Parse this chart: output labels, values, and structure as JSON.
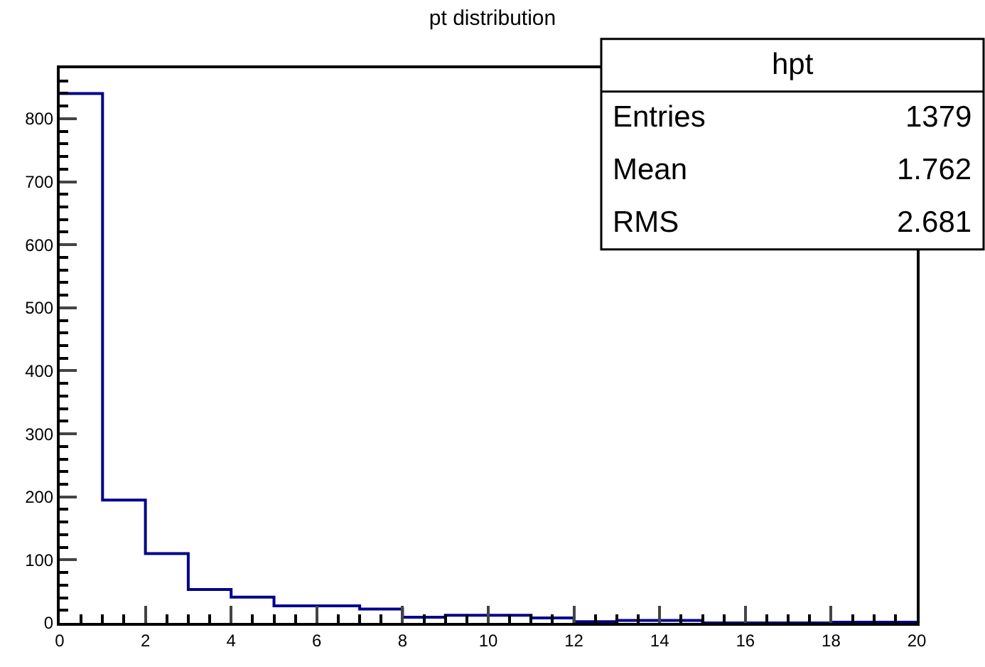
{
  "chart_data": {
    "type": "histogram",
    "title": "pt distribution",
    "bins": [
      0,
      1,
      2,
      3,
      4,
      5,
      6,
      7,
      8,
      9,
      10,
      11,
      12,
      13,
      14,
      15,
      16,
      17,
      18,
      19,
      20
    ],
    "values": [
      840,
      195,
      110,
      53,
      41,
      27,
      27,
      22,
      9,
      12,
      12,
      8,
      2,
      4,
      4,
      0,
      0,
      0,
      1,
      1
    ],
    "color": "#00008b",
    "xlim": [
      0,
      20
    ],
    "xticks": [
      0,
      2,
      4,
      6,
      8,
      10,
      12,
      14,
      16,
      18,
      20
    ],
    "ylim": [
      0,
      880
    ],
    "yticks": [
      0,
      100,
      200,
      300,
      400,
      500,
      600,
      700,
      800
    ],
    "annotations": [
      "hpt",
      "Entries",
      "1379",
      "Mean",
      "1.762",
      "RMS",
      "2.681"
    ]
  }
}
